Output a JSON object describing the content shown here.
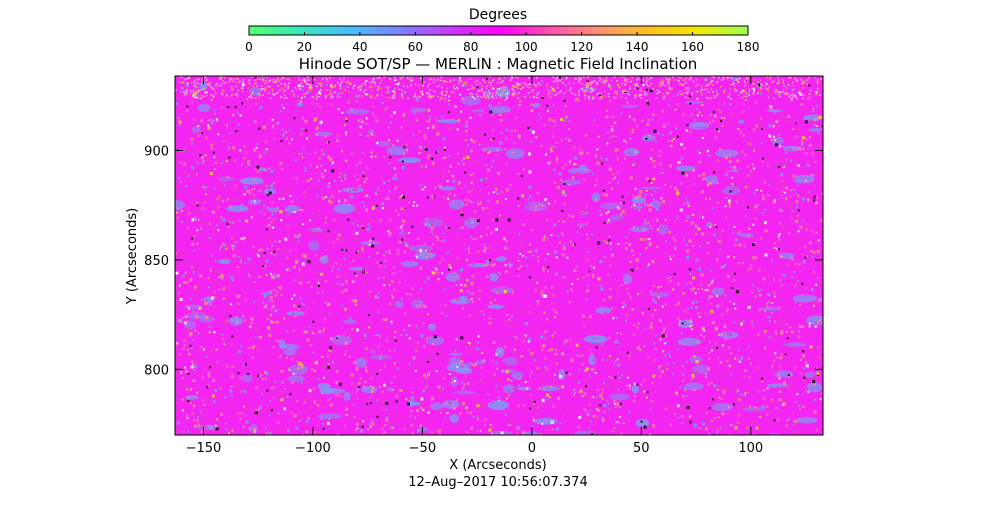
{
  "chart_data": {
    "type": "heatmap",
    "title": "Hinode SOT/SP — MERLIN : Magnetic Field Inclination",
    "xlabel": "X (Arcseconds)",
    "ylabel": "Y (Arcseconds)",
    "xlim": [
      -163,
      133
    ],
    "ylim": [
      770,
      934
    ],
    "xticks": [
      -150,
      -100,
      -50,
      0,
      50,
      100
    ],
    "yticks": [
      800,
      850,
      900
    ],
    "colorbar": {
      "label": "Degrees",
      "range": [
        0,
        180
      ],
      "ticks": [
        0,
        20,
        40,
        60,
        80,
        100,
        120,
        140,
        160,
        180
      ],
      "colors": [
        "#55ff6e",
        "#35e8b8",
        "#46bfff",
        "#7a84ff",
        "#c73cff",
        "#ff00ff",
        "#ff4fb0",
        "#ff9070",
        "#ffc020",
        "#f0e800",
        "#9dff50"
      ]
    },
    "typical_value_deg": 95,
    "field_colors": {
      "dominant": "#f425f2",
      "secondary": "#e63cc4",
      "low_inclination": "#7f9cf4",
      "high_inclination": "#ff8a9a",
      "peak": "#ffd23a"
    },
    "timestamp": "12–Aug–2017 10:56:07.374"
  }
}
